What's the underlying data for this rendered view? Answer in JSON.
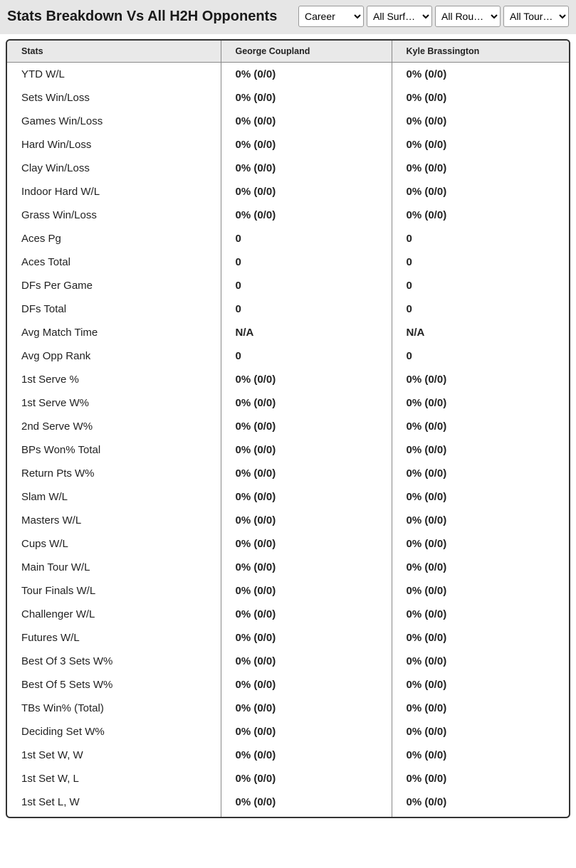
{
  "header": {
    "title": "Stats Breakdown Vs All H2H Opponents",
    "filters": {
      "period": {
        "selected": "Career",
        "options": [
          "Career"
        ]
      },
      "surface": {
        "selected": "All Surf…",
        "options": [
          "All Surf…"
        ]
      },
      "round": {
        "selected": "All Rou…",
        "options": [
          "All Rou…"
        ]
      },
      "tour": {
        "selected": "All Tour…",
        "options": [
          "All Tour…"
        ]
      }
    }
  },
  "table": {
    "columns": [
      "Stats",
      "George Coupland",
      "Kyle Brassington"
    ],
    "rows": [
      {
        "stat": "YTD W/L",
        "p1": "0% (0/0)",
        "p2": "0% (0/0)"
      },
      {
        "stat": "Sets Win/Loss",
        "p1": "0% (0/0)",
        "p2": "0% (0/0)"
      },
      {
        "stat": "Games Win/Loss",
        "p1": "0% (0/0)",
        "p2": "0% (0/0)"
      },
      {
        "stat": "Hard Win/Loss",
        "p1": "0% (0/0)",
        "p2": "0% (0/0)"
      },
      {
        "stat": "Clay Win/Loss",
        "p1": "0% (0/0)",
        "p2": "0% (0/0)"
      },
      {
        "stat": "Indoor Hard W/L",
        "p1": "0% (0/0)",
        "p2": "0% (0/0)"
      },
      {
        "stat": "Grass Win/Loss",
        "p1": "0% (0/0)",
        "p2": "0% (0/0)"
      },
      {
        "stat": "Aces Pg",
        "p1": "0",
        "p2": "0"
      },
      {
        "stat": "Aces Total",
        "p1": "0",
        "p2": "0"
      },
      {
        "stat": "DFs Per Game",
        "p1": "0",
        "p2": "0"
      },
      {
        "stat": "DFs Total",
        "p1": "0",
        "p2": "0"
      },
      {
        "stat": "Avg Match Time",
        "p1": "N/A",
        "p2": "N/A"
      },
      {
        "stat": "Avg Opp Rank",
        "p1": "0",
        "p2": "0"
      },
      {
        "stat": "1st Serve %",
        "p1": "0% (0/0)",
        "p2": "0% (0/0)"
      },
      {
        "stat": "1st Serve W%",
        "p1": "0% (0/0)",
        "p2": "0% (0/0)"
      },
      {
        "stat": "2nd Serve W%",
        "p1": "0% (0/0)",
        "p2": "0% (0/0)"
      },
      {
        "stat": "BPs Won% Total",
        "p1": "0% (0/0)",
        "p2": "0% (0/0)"
      },
      {
        "stat": "Return Pts W%",
        "p1": "0% (0/0)",
        "p2": "0% (0/0)"
      },
      {
        "stat": "Slam W/L",
        "p1": "0% (0/0)",
        "p2": "0% (0/0)"
      },
      {
        "stat": "Masters W/L",
        "p1": "0% (0/0)",
        "p2": "0% (0/0)"
      },
      {
        "stat": "Cups W/L",
        "p1": "0% (0/0)",
        "p2": "0% (0/0)"
      },
      {
        "stat": "Main Tour W/L",
        "p1": "0% (0/0)",
        "p2": "0% (0/0)"
      },
      {
        "stat": "Tour Finals W/L",
        "p1": "0% (0/0)",
        "p2": "0% (0/0)"
      },
      {
        "stat": "Challenger W/L",
        "p1": "0% (0/0)",
        "p2": "0% (0/0)"
      },
      {
        "stat": "Futures W/L",
        "p1": "0% (0/0)",
        "p2": "0% (0/0)"
      },
      {
        "stat": "Best Of 3 Sets W%",
        "p1": "0% (0/0)",
        "p2": "0% (0/0)"
      },
      {
        "stat": "Best Of 5 Sets W%",
        "p1": "0% (0/0)",
        "p2": "0% (0/0)"
      },
      {
        "stat": "TBs Win% (Total)",
        "p1": "0% (0/0)",
        "p2": "0% (0/0)"
      },
      {
        "stat": "Deciding Set W%",
        "p1": "0% (0/0)",
        "p2": "0% (0/0)"
      },
      {
        "stat": "1st Set W, W",
        "p1": "0% (0/0)",
        "p2": "0% (0/0)"
      },
      {
        "stat": "1st Set W, L",
        "p1": "0% (0/0)",
        "p2": "0% (0/0)"
      },
      {
        "stat": "1st Set L, W",
        "p1": "0% (0/0)",
        "p2": "0% (0/0)"
      }
    ]
  },
  "style": {
    "header_bg": "#e6e6e6",
    "table_header_bg": "#e9e9e9",
    "border_color": "#333333",
    "divider_color": "#888888",
    "text_color": "#1a1a1a",
    "title_fontsize": 20,
    "header_fontsize": 12.5,
    "cell_fontsize": 15
  }
}
